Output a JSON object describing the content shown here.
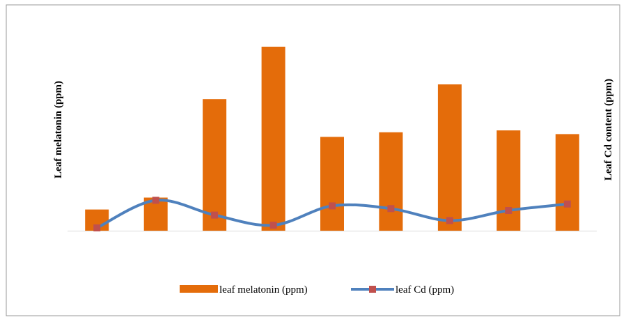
{
  "chart_data": {
    "type": "bar",
    "categories": [
      "",
      "",
      "",
      "",
      "",
      "",
      "",
      "",
      ""
    ],
    "ylabel": "Leaf melatonin (ppm)",
    "y2label": "Leaf Cd content (ppm)",
    "ylim": [
      0,
      100
    ],
    "y2lim": [
      0,
      100
    ],
    "grid": false,
    "legend_position": "bottom",
    "series": [
      {
        "name": "leaf melatonin (ppm)",
        "type": "bar",
        "axis": "left",
        "color": "#E46C0A",
        "values": [
          11.5,
          18,
          71.5,
          100,
          51,
          53.5,
          79.5,
          54.5,
          52.5
        ]
      },
      {
        "name": "leaf Cd (ppm)",
        "type": "line",
        "axis": "right",
        "color": "#4F81BD",
        "marker_color": "#C0504D",
        "smooth": true,
        "values": [
          1.5,
          16.5,
          8.5,
          3,
          13.5,
          12,
          5.5,
          11,
          14.5
        ]
      }
    ]
  }
}
